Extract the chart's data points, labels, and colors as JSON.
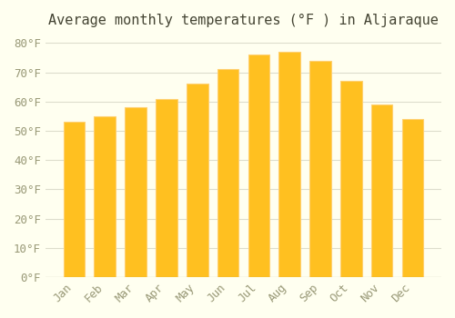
{
  "title": "Average monthly temperatures (°F ) in Aljaraque",
  "months": [
    "Jan",
    "Feb",
    "Mar",
    "Apr",
    "May",
    "Jun",
    "Jul",
    "Aug",
    "Sep",
    "Oct",
    "Nov",
    "Dec"
  ],
  "values": [
    53,
    55,
    58,
    61,
    66,
    71,
    76,
    77,
    74,
    67,
    59,
    54
  ],
  "bar_color_main": "#FFC020",
  "bar_color_edge": "#FFD070",
  "background_color": "#FFFFF0",
  "grid_color": "#DDDDCC",
  "text_color": "#999977",
  "title_color": "#444433",
  "ylim": [
    0,
    82
  ],
  "yticks": [
    0,
    10,
    20,
    30,
    40,
    50,
    60,
    70,
    80
  ],
  "title_fontsize": 11,
  "tick_fontsize": 9,
  "figsize": [
    5.0,
    3.5
  ],
  "dpi": 100
}
